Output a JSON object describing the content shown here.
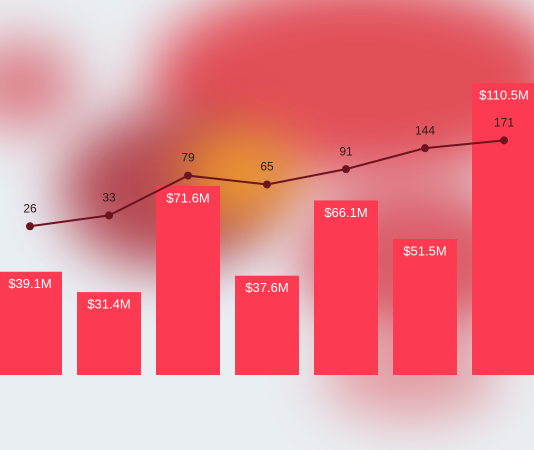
{
  "chart_data": {
    "type": "bar",
    "categories": [
      null,
      null,
      null,
      null,
      null,
      null,
      null
    ],
    "series": [
      {
        "type": "bar",
        "color": "#fc3b52",
        "values": [
          39.1,
          31.4,
          71.6,
          37.6,
          66.1,
          51.5,
          110.5
        ],
        "value_labels": [
          "$39.1M",
          "$31.4M",
          "$71.6M",
          "$37.6M",
          "$66.1M",
          "$51.5M",
          "$110.5M"
        ]
      },
      {
        "type": "line",
        "axis": "y2",
        "color": "#6e1420",
        "values": [
          26,
          33,
          79,
          65,
          91,
          144,
          171
        ]
      }
    ],
    "ylim": [
      0,
      142
    ],
    "y2lim": [
      1,
      3700
    ],
    "y2scale": "log",
    "grid": false
  }
}
